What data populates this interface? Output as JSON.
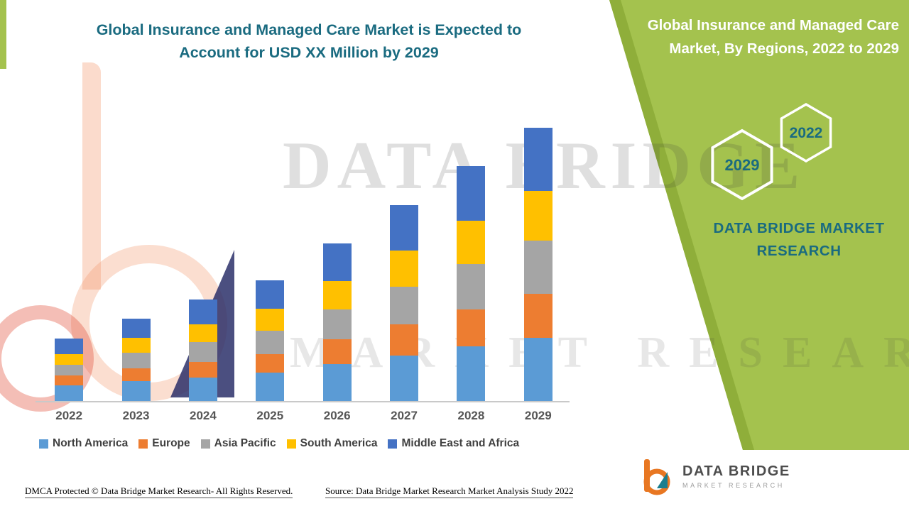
{
  "colors": {
    "accent_teal": "#1a6b80",
    "panel_green": "#a4c24e",
    "panel_edge_green": "#8fae3a"
  },
  "title": {
    "line1": "Global Insurance and Managed Care Market is Expected to",
    "line2": "Account for USD XX Million by 2029"
  },
  "chart_data": {
    "type": "bar",
    "stacked": true,
    "title": "Global Insurance and Managed Care Market is Expected to Account for USD XX Million by 2029",
    "categories": [
      "2022",
      "2023",
      "2024",
      "2025",
      "2026",
      "2027",
      "2028",
      "2029"
    ],
    "series": [
      {
        "name": "North America",
        "color": "#5b9bd5",
        "values": [
          22,
          28,
          33,
          40,
          52,
          64,
          76,
          88
        ]
      },
      {
        "name": "Europe",
        "color": "#ed7d31",
        "values": [
          14,
          18,
          22,
          26,
          34,
          43,
          52,
          62
        ]
      },
      {
        "name": "Asia Pacific",
        "color": "#a5a5a5",
        "values": [
          15,
          22,
          27,
          32,
          42,
          53,
          64,
          74
        ]
      },
      {
        "name": "South America",
        "color": "#ffc000",
        "values": [
          15,
          20,
          25,
          31,
          40,
          50,
          60,
          70
        ]
      },
      {
        "name": "Middle East and Africa",
        "color": "#4472c4",
        "values": [
          21,
          27,
          35,
          40,
          52,
          64,
          76,
          88
        ]
      }
    ],
    "xlabel": "",
    "ylabel": "",
    "y_axis_visible": false,
    "units": "relative estimate (no numeric axis shown; market value masked as USD XX Million)",
    "legend_position": "bottom"
  },
  "side_panel": {
    "title": "Global Insurance and Managed Care Market, By Regions, 2022 to 2029",
    "hexagons": [
      {
        "label": "2022"
      },
      {
        "label": "2029"
      }
    ],
    "brand": "DATA BRIDGE MARKET RESEARCH"
  },
  "watermark": {
    "line1": "DATA BRIDGE",
    "line2": "MARKET RESEARCH"
  },
  "footer": {
    "dmca": "DMCA Protected © Data Bridge Market Research- All Rights Reserved.",
    "source": "Source: Data Bridge Market Research Market Analysis Study 2022"
  },
  "logo": {
    "name": "DATA BRIDGE",
    "sub": "MARKET RESEARCH"
  }
}
